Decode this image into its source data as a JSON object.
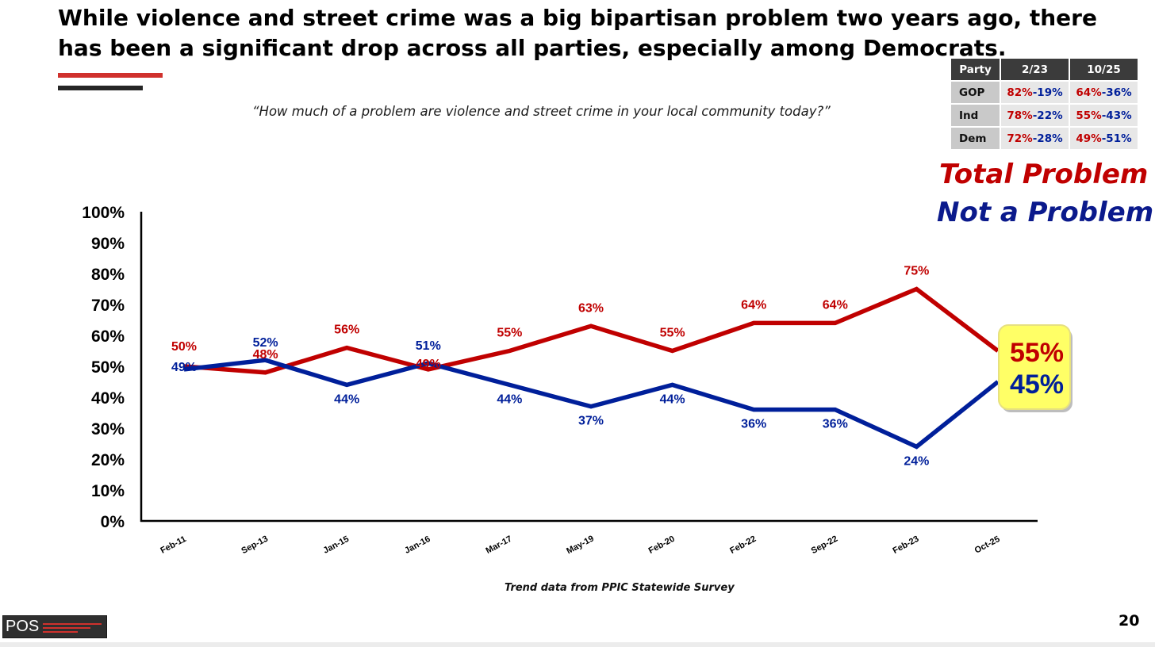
{
  "title": "While violence and street crime was a big bipartisan problem two years ago, there has been a significant drop across all parties, especially among Democrats.",
  "question": "“How much of a problem are violence and street crime in your local community today?”",
  "party_table": {
    "headers": [
      "Party",
      "2/23",
      "10/25"
    ],
    "rows": [
      {
        "party": "GOP",
        "c1_red": "82%",
        "c1_blue": "-19%",
        "c2_red": "64%",
        "c2_blue": "-36%"
      },
      {
        "party": "Ind",
        "c1_red": "78%",
        "c1_blue": "-22%",
        "c2_red": "55%",
        "c2_blue": "-43%"
      },
      {
        "party": "Dem",
        "c1_red": "72%",
        "c1_blue": "-28%",
        "c2_red": "49%",
        "c2_blue": "-51%"
      }
    ]
  },
  "legend": {
    "total": "Total Problem",
    "not": "Not a Problem"
  },
  "source": "Trend data from PPIC Statewide Survey",
  "logo_text": "POS",
  "page_number": "20",
  "chart_data": {
    "type": "line",
    "categories": [
      "Feb-11",
      "Sep-13",
      "Jan-15",
      "Jan-16",
      "Mar-17",
      "May-19",
      "Feb-20",
      "Feb-22",
      "Sep-22",
      "Feb-23",
      "Oct-25"
    ],
    "series": [
      {
        "name": "Total Problem",
        "color": "#c00000",
        "values": [
          50,
          48,
          56,
          49,
          55,
          63,
          55,
          64,
          64,
          75,
          55
        ]
      },
      {
        "name": "Not a Problem",
        "color": "#001f9a",
        "values": [
          49,
          52,
          44,
          51,
          44,
          37,
          44,
          36,
          36,
          24,
          45
        ]
      }
    ],
    "y_ticks": [
      "0%",
      "10%",
      "20%",
      "30%",
      "40%",
      "50%",
      "60%",
      "70%",
      "80%",
      "90%",
      "100%"
    ],
    "ylim": [
      0,
      100
    ],
    "grid": false,
    "callout": {
      "total": "55%",
      "not": "45%"
    }
  }
}
